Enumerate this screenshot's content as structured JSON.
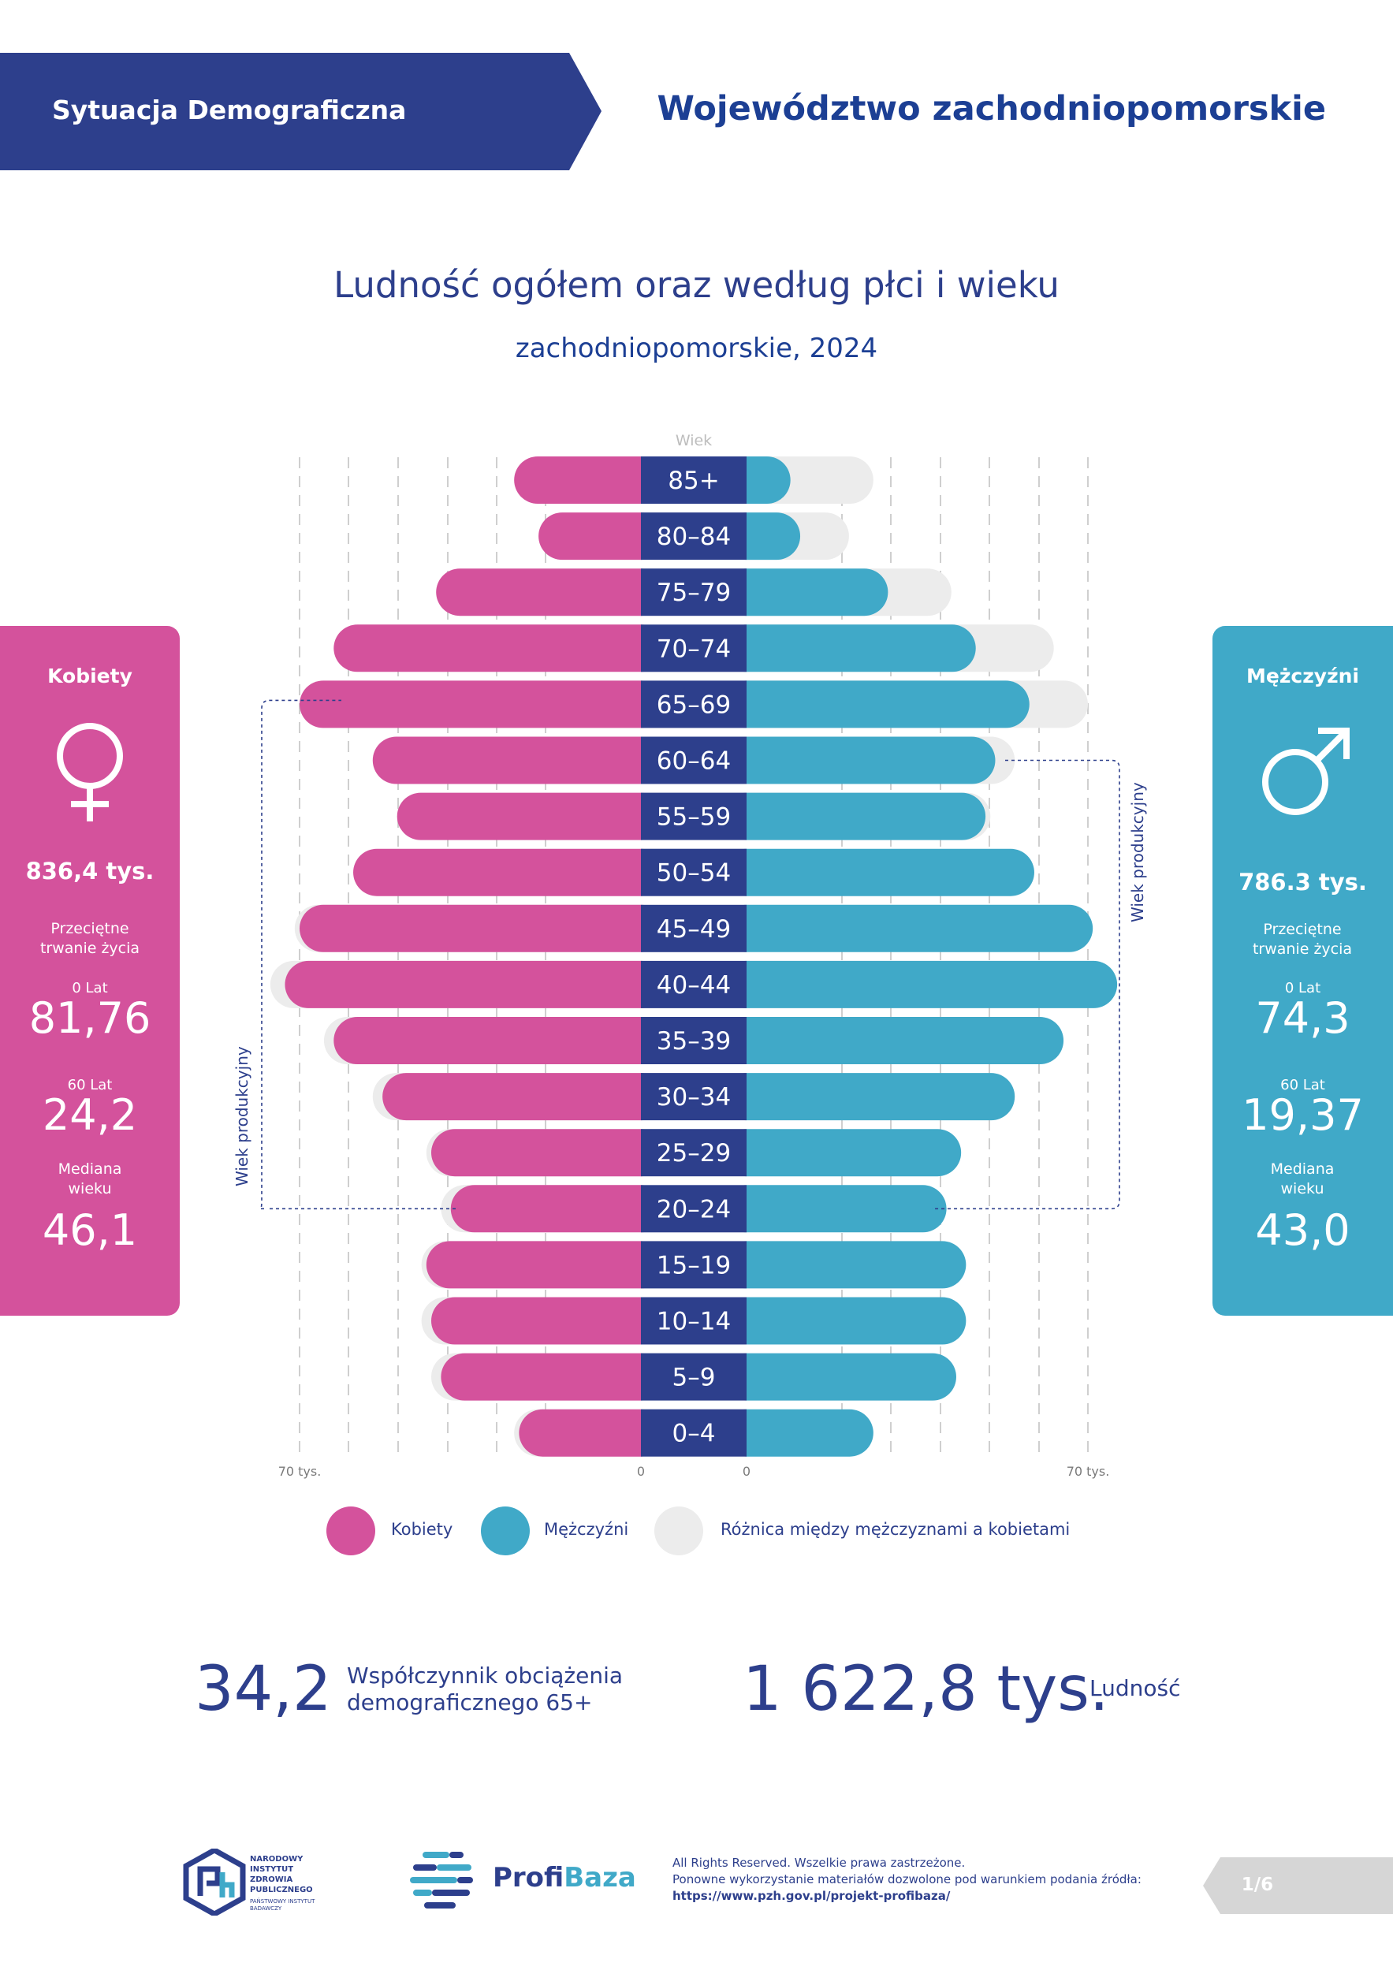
{
  "header": {
    "section_label": "Sytuacja Demograficzna",
    "region_title": "Województwo zachodniopomorskie",
    "band_color": "#2d3f8c"
  },
  "chart_data": {
    "type": "population-pyramid",
    "title": "Ludność ogółem oraz według płci i wieku",
    "subtitle": "zachodniopomorskie, 2024",
    "age_axis_label": "Wiek",
    "categories": [
      "85+",
      "80-84",
      "75-79",
      "70-74",
      "65-69",
      "60-64",
      "55-59",
      "50-54",
      "45-49",
      "40-44",
      "35-39",
      "30-34",
      "25-29",
      "20-24",
      "15-19",
      "10-14",
      "5-9",
      "0-4"
    ],
    "series": [
      {
        "name": "Kobiety",
        "color": "#d4529c",
        "values": [
          26,
          21,
          42,
          63,
          70,
          55,
          50,
          59,
          70,
          73,
          63,
          53,
          43,
          39,
          44,
          43,
          41,
          25
        ]
      },
      {
        "name": "Mężczyźni",
        "color": "#40a9c8",
        "values": [
          9,
          11,
          29,
          47,
          58,
          51,
          49,
          59,
          71,
          76,
          65,
          55,
          44,
          41,
          45,
          45,
          43,
          26
        ]
      },
      {
        "name": "Różnica między mężczyznami a kobietami",
        "color": "#ececec"
      }
    ],
    "x_range": [
      0,
      70
    ],
    "x_tick_labels": {
      "left_max": "70 tys.",
      "left_zero": "0",
      "right_zero": "0",
      "right_max": "70 tys."
    },
    "productive_age_label": "Wiek produkcyjny",
    "grid": true
  },
  "women_card": {
    "title": "Kobiety",
    "symbol": "♀",
    "total": "836,4 tys.",
    "life_expectancy_label": "Przeciętne trwanie życia",
    "age0_label": "0 Lat",
    "age0_value": "81,76",
    "age60_label": "60 Lat",
    "age60_value": "24,2",
    "median_label": "Mediana wieku",
    "median_value": "46,1"
  },
  "men_card": {
    "title": "Mężczyźni",
    "symbol": "♂",
    "total": "786.3 tys.",
    "life_expectancy_label": "Przeciętne trwanie życia",
    "age0_label": "0 Lat",
    "age0_value": "74,3",
    "age60_label": "60 Lat",
    "age60_value": "19,37",
    "median_label": "Mediana wieku",
    "median_value": "43,0"
  },
  "legend": {
    "women": "Kobiety",
    "men": "Mężczyźni",
    "diff": "Różnica między mężczyznami a kobietami"
  },
  "stats": {
    "dependency_value": "34,2",
    "dependency_label_line1": "Współczynnik obciążenia",
    "dependency_label_line2": "demograficznego 65+",
    "population_value": "1 622,8 tys.",
    "population_label": "Ludność"
  },
  "footer": {
    "nizp_logo_text": "NARODOWY INSTYTUT ZDROWIA PUBLICZNEGO",
    "nizp_logo_subtext": "PAŃSTWOWY INSTYTUT BADAWCZY",
    "profibaza_prefix": "Profi",
    "profibaza_suffix": "Baza",
    "rights_line1": "All Rights Reserved. Wszelkie prawa zastrzeżone.",
    "rights_line2": "Ponowne wykorzystanie materiałów dozwolone pod warunkiem podania źródła:",
    "rights_url": "https://www.pzh.gov.pl/projekt-profibaza/",
    "page_number": "1/6"
  }
}
